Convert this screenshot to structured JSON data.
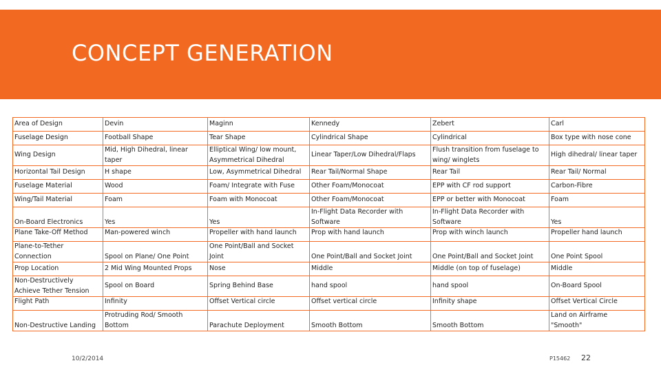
{
  "title": "CONCEPT GENERATION",
  "footer": {
    "date": "10/2/2014",
    "code": "P15462",
    "page": "22"
  },
  "table": {
    "rows": [
      {
        "cells": [
          [
            "Area of Design"
          ],
          [
            "Devin"
          ],
          [
            "Maginn"
          ],
          [
            "Kennedy"
          ],
          [
            "Zebert"
          ],
          [
            "Carl"
          ]
        ]
      },
      {
        "cells": [
          [
            "Fuselage Design"
          ],
          [
            "Football Shape"
          ],
          [
            "Tear Shape"
          ],
          [
            "Cylindrical Shape"
          ],
          [
            "Cylindrical"
          ],
          [
            "Box type with nose cone"
          ]
        ]
      },
      {
        "cells": [
          [
            "Wing Design"
          ],
          [
            "Mid, High Dihedral, linear",
            "taper"
          ],
          [
            "Elliptical Wing/ low mount,",
            "Asymmetrical Dihedral"
          ],
          [
            "Linear Taper/Low Dihedral/Flaps"
          ],
          [
            "Flush transition from fuselage to",
            "wing/ winglets"
          ],
          [
            "High dihedral/ linear taper"
          ]
        ]
      },
      {
        "cells": [
          [
            "Horizontal Tail Design"
          ],
          [
            "H shape"
          ],
          [
            "Low, Asymmetrical Dihedral"
          ],
          [
            "Rear Tail/Normal Shape"
          ],
          [
            "Rear Tail"
          ],
          [
            "Rear Tail/ Normal"
          ]
        ]
      },
      {
        "cells": [
          [
            "Fuselage Material"
          ],
          [
            "Wood"
          ],
          [
            "Foam/ Integrate with Fuse"
          ],
          [
            "Other Foam/Monocoat"
          ],
          [
            "EPP with CF rod support"
          ],
          [
            "Carbon-Fibre"
          ]
        ]
      },
      {
        "cells": [
          [
            "Wing/Tail Material"
          ],
          [
            "Foam"
          ],
          [
            "Foam with Monocoat"
          ],
          [
            "Other Foam/Monocoat"
          ],
          [
            "EPP or better with Monocoat"
          ],
          [
            "Foam"
          ]
        ]
      },
      {
        "cells": [
          [
            "On-Board Electronics"
          ],
          [
            "Yes"
          ],
          [
            "Yes"
          ],
          [
            "In-Flight Data Recorder with",
            "Software"
          ],
          [
            "In-Flight Data Recorder with",
            "Software"
          ],
          [
            "Yes"
          ]
        ]
      },
      {
        "cells": [
          [
            "Plane Take-Off Method"
          ],
          [
            "Man-powered winch"
          ],
          [
            "Propeller with hand launch"
          ],
          [
            "Prop with hand launch"
          ],
          [
            "Prop with winch launch"
          ],
          [
            "Propeller hand launch"
          ]
        ]
      },
      {
        "cells": [
          [
            "Plane-to-Tether",
            "Connection"
          ],
          [
            "Spool on Plane/ One Point"
          ],
          [
            "One Point/Ball and Socket",
            "Joint"
          ],
          [
            "One Point/Ball and Socket Joint"
          ],
          [
            "One Point/Ball and Socket Joint"
          ],
          [
            "One Point Spool"
          ]
        ]
      },
      {
        "cells": [
          [
            "Prop Location"
          ],
          [
            "2 Mid Wing Mounted Props"
          ],
          [
            "Nose"
          ],
          [
            "Middle"
          ],
          [
            "Middle (on top of fuselage)"
          ],
          [
            "Middle"
          ]
        ]
      },
      {
        "cells": [
          [
            "Non-Destructively",
            "Achieve Tether Tension"
          ],
          [
            "Spool on Board"
          ],
          [
            "Spring Behind Base"
          ],
          [
            "hand spool"
          ],
          [
            "hand spool"
          ],
          [
            "On-Board Spool"
          ]
        ]
      },
      {
        "cells": [
          [
            "Flight Path"
          ],
          [
            "Infinity"
          ],
          [
            "Offset Vertical circle"
          ],
          [
            "Offset vertical circle"
          ],
          [
            "Infinity shape"
          ],
          [
            "Offset Vertical Circle"
          ]
        ]
      },
      {
        "cells": [
          [
            "Non-Destructive Landing"
          ],
          [
            "Protruding Rod/ Smooth",
            "Bottom"
          ],
          [
            "Parachute Deployment"
          ],
          [
            "Smooth Bottom"
          ],
          [
            "Smooth Bottom"
          ],
          [
            "Land on Airframe",
            "\"Smooth\""
          ]
        ]
      }
    ]
  }
}
